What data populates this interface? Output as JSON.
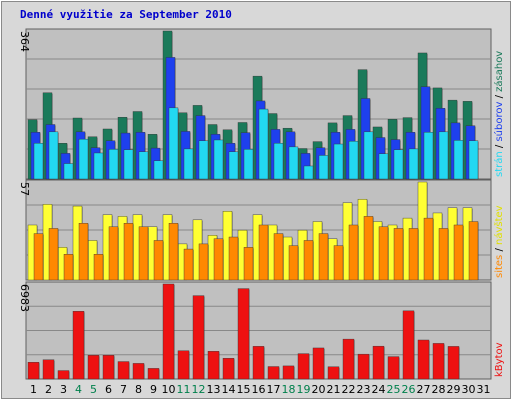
{
  "chart_data": {
    "type": "bar",
    "title": "Denné využitie za September 2010",
    "categories": [
      "1",
      "2",
      "3",
      "4",
      "5",
      "6",
      "7",
      "8",
      "9",
      "10",
      "11",
      "12",
      "13",
      "14",
      "15",
      "16",
      "17",
      "18",
      "19",
      "20",
      "21",
      "22",
      "23",
      "24",
      "25",
      "26",
      "27",
      "28",
      "29",
      "30",
      "31"
    ],
    "weekend_days": [
      "4",
      "5",
      "11",
      "12",
      "18",
      "19",
      "25",
      "26"
    ],
    "separator": "/",
    "panels": [
      {
        "name": "traffic",
        "y_max_label": "364",
        "ylim": [
          0,
          364
        ],
        "series": [
          {
            "name": "zásahov",
            "color": "#1a7a5a",
            "values": [
              146,
              212,
              88,
              150,
              104,
              123,
              152,
              166,
              110,
              364,
              163,
              181,
              134,
              121,
              139,
              253,
              161,
              125,
              75,
              92,
              138,
              156,
              269,
              128,
              147,
              151,
              310,
              224,
              194,
              191,
              0
            ]
          },
          {
            "name": "súborov",
            "color": "#1e40ee",
            "values": [
              115,
              134,
              63,
              116,
              77,
              94,
              113,
              115,
              76,
              299,
              117,
              156,
              110,
              88,
              114,
              192,
              122,
              116,
              63,
              77,
              115,
              122,
              198,
              102,
              97,
              115,
              227,
              174,
              138,
              131,
              0
            ]
          },
          {
            "name": "strán",
            "color": "#22d8f2",
            "values": [
              88,
              116,
              38,
              98,
              64,
              73,
              72,
              67,
              45,
              175,
              74,
              94,
              96,
              67,
              73,
              172,
              88,
              79,
              32,
              58,
              86,
              93,
              116,
              62,
              72,
              74,
              115,
              116,
              95,
              94,
              0
            ]
          }
        ]
      },
      {
        "name": "visits",
        "y_max_label": "57",
        "ylim": [
          0,
          57
        ],
        "series": [
          {
            "name": "návštev",
            "color": "#ffff33",
            "values": [
              32,
              44,
              19,
              43,
              23,
              38,
              37,
              38,
              31,
              38,
              21,
              35,
              26,
              40,
              29,
              38,
              32,
              25,
              29,
              34,
              24,
              45,
              47,
              34,
              32,
              36,
              57,
              39,
              42,
              42,
              0
            ]
          },
          {
            "name": "sites",
            "color": "#ff8800",
            "values": [
              27,
              30,
              15,
              33,
              15,
              31,
              33,
              31,
              23,
              33,
              18,
              21,
              24,
              25,
              19,
              32,
              27,
              20,
              23,
              27,
              20,
              32,
              37,
              31,
              30,
              30,
              36,
              30,
              32,
              34,
              0
            ]
          }
        ]
      },
      {
        "name": "kbytes",
        "y_max_label": "6983",
        "ylim": [
          0,
          6983
        ],
        "series": [
          {
            "name": "kBytov",
            "color": "#ee1111",
            "values": [
              1234,
              1412,
              620,
              4979,
              1742,
              1744,
              1282,
              1146,
              779,
              6983,
              2080,
              6128,
              2037,
              1523,
              6646,
              2400,
              916,
              962,
              1864,
              2282,
              897,
              2932,
              1827,
              2414,
              1647,
              5010,
              2867,
              2616,
              2395,
              0,
              0
            ]
          }
        ]
      }
    ],
    "colors": {
      "plot_bg": "#c0c0c0",
      "grid": "#888888",
      "title": "#0000cc",
      "weekday": "#000000",
      "weekend": "#00804c"
    }
  }
}
